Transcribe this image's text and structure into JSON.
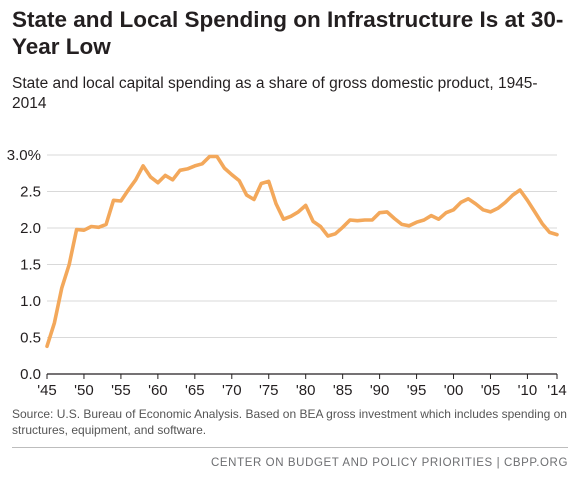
{
  "title": "State and Local Spending on Infrastructure Is at 30-Year Low",
  "subtitle": "State and local capital spending as a share of gross domestic product, 1945-2014",
  "source": "Source: U.S. Bureau of Economic Analysis. Based on BEA gross investment which includes spending on structures, equipment, and software.",
  "footer": "CENTER ON BUDGET AND POLICY PRIORITIES | CBPP.ORG",
  "colors": {
    "line": "#f3a85b",
    "grid": "#d9d9d9",
    "axis": "#231f20"
  },
  "chart_data": {
    "type": "line",
    "title": "State and Local Spending on Infrastructure Is at 30-Year Low",
    "subtitle": "State and local capital spending as a share of gross domestic product, 1945-2014",
    "xlabel": "",
    "ylabel": "",
    "ylim": [
      0,
      3.0
    ],
    "xlim": [
      1945,
      2014
    ],
    "grid": true,
    "yticks": [
      0.0,
      0.5,
      1.0,
      1.5,
      2.0,
      2.5,
      3.0
    ],
    "ytick_labels": [
      "0.0",
      "0.5",
      "1.0",
      "1.5",
      "2.0",
      "2.5",
      "3.0%"
    ],
    "xticks": [
      1945,
      1950,
      1955,
      1960,
      1965,
      1970,
      1975,
      1980,
      1985,
      1990,
      1995,
      2000,
      2005,
      2010,
      2014
    ],
    "xtick_labels": [
      "'45",
      "'50",
      "'55",
      "'60",
      "'65",
      "'70",
      "'75",
      "'80",
      "'85",
      "'90",
      "'95",
      "'00",
      "'05",
      "'10",
      "'14"
    ],
    "x": [
      1945,
      1946,
      1947,
      1948,
      1949,
      1950,
      1951,
      1952,
      1953,
      1954,
      1955,
      1956,
      1957,
      1958,
      1959,
      1960,
      1961,
      1962,
      1963,
      1964,
      1965,
      1966,
      1967,
      1968,
      1969,
      1970,
      1971,
      1972,
      1973,
      1974,
      1975,
      1976,
      1977,
      1978,
      1979,
      1980,
      1981,
      1982,
      1983,
      1984,
      1985,
      1986,
      1987,
      1988,
      1989,
      1990,
      1991,
      1992,
      1993,
      1994,
      1995,
      1996,
      1997,
      1998,
      1999,
      2000,
      2001,
      2002,
      2003,
      2004,
      2005,
      2006,
      2007,
      2008,
      2009,
      2010,
      2011,
      2012,
      2013,
      2014
    ],
    "series": [
      {
        "values": [
          0.38,
          0.7,
          1.18,
          1.5,
          1.98,
          1.97,
          2.02,
          2.01,
          2.05,
          2.38,
          2.37,
          2.52,
          2.66,
          2.85,
          2.7,
          2.62,
          2.72,
          2.66,
          2.79,
          2.81,
          2.85,
          2.88,
          2.98,
          2.98,
          2.82,
          2.73,
          2.65,
          2.45,
          2.39,
          2.61,
          2.64,
          2.33,
          2.12,
          2.16,
          2.22,
          2.31,
          2.09,
          2.02,
          1.89,
          1.92,
          2.01,
          2.11,
          2.1,
          2.11,
          2.11,
          2.21,
          2.22,
          2.13,
          2.05,
          2.03,
          2.08,
          2.11,
          2.17,
          2.12,
          2.21,
          2.25,
          2.35,
          2.4,
          2.33,
          2.25,
          2.22,
          2.27,
          2.35,
          2.45,
          2.52,
          2.38,
          2.22,
          2.06,
          1.94,
          1.91
        ]
      }
    ]
  }
}
